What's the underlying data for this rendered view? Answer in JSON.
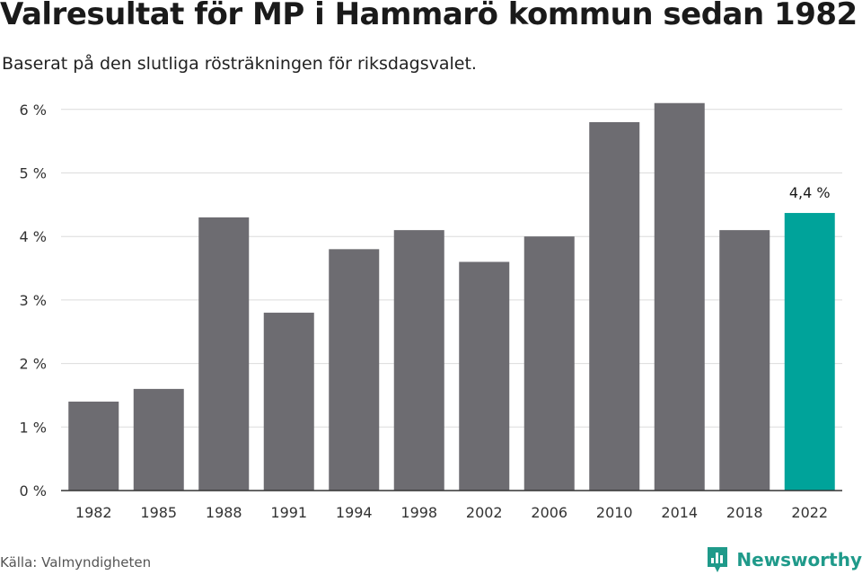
{
  "header": {
    "title": "Valresultat för MP i Hammarö kommun sedan 1982",
    "subtitle": "Baserat på den slutliga rösträkningen för riksdagsvalet."
  },
  "footer": {
    "source": "Källa: Valmyndigheten",
    "brand": "Newsworthy"
  },
  "colors": {
    "bar": "#6d6c71",
    "highlight": "#00a39a",
    "brand": "#1f9a8a"
  },
  "chart_data": {
    "type": "bar",
    "categories": [
      "1982",
      "1985",
      "1988",
      "1991",
      "1994",
      "1998",
      "2002",
      "2006",
      "2010",
      "2014",
      "2018",
      "2022"
    ],
    "values": [
      1.4,
      1.6,
      4.3,
      2.8,
      3.8,
      4.1,
      3.6,
      4.0,
      5.8,
      6.1,
      4.1,
      4.37
    ],
    "yticks": [
      "0 %",
      "1 %",
      "2 %",
      "3 %",
      "4 %",
      "5 %",
      "6 %"
    ],
    "ylim": [
      0,
      6
    ],
    "highlight_index": 11,
    "annotation": "4,4 %",
    "grid": true
  }
}
